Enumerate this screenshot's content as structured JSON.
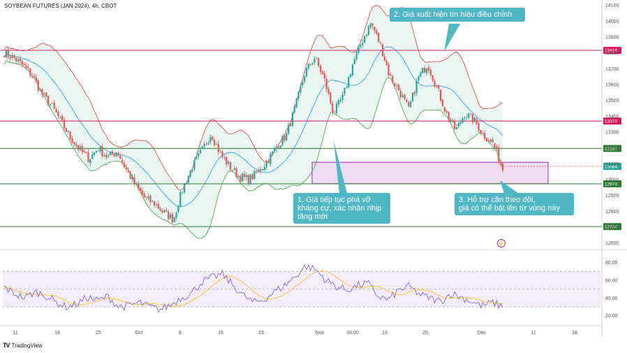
{
  "header": {
    "title": "SOYBEAN FUTURES (JAN 2024), 4h, CBOT"
  },
  "footer": {
    "brand": "TradingView",
    "logo": "TV"
  },
  "annotations": [
    {
      "id": "a1",
      "text_lines": [
        "1. Giá tiếp tục phá vỡ",
        "kháng cự, xác nhận nhịp",
        "tăng mới"
      ]
    },
    {
      "id": "a2",
      "text_lines": [
        "2. Giá xuất hiện tín hiệu điều chỉnh"
      ]
    },
    {
      "id": "a3",
      "text_lines": [
        "3. Hỗ trợ cần theo dõi,",
        "giá có thể bật lên từ vùng này"
      ]
    }
  ],
  "colors": {
    "up": "#26a69a",
    "down": "#ef5350",
    "band_upper": "#e53935",
    "band_lower": "#43a047",
    "band_mid": "#2196f3",
    "band_fill": "#e6f4ef",
    "resistance": "#d81b60",
    "support": "#2e7d32",
    "zone_fill": "#e1bee7",
    "zone_stroke": "#9c27b0",
    "rsi": "#7e57c2",
    "rsi_ma": "#fbc02d",
    "rsi_bg": "#f3ecfb",
    "callout": "#4fb6c3"
  },
  "chart_data": {
    "type": "candlestick",
    "title": "SOYBEAN FUTURES (JAN 2024), 4h, CBOT",
    "price_axis": {
      "ticks": [
        14100,
        14000,
        13900,
        13800,
        13700,
        13600,
        13500,
        13400,
        13300,
        13200,
        13100,
        13000,
        12900,
        12800,
        12700,
        12600
      ],
      "ylim": [
        12590,
        14125
      ]
    },
    "time_axis": {
      "labels": [
        "11",
        "18",
        "25",
        "Oct",
        "9",
        "16",
        "23",
        "Nov",
        "08:00",
        "13",
        "20",
        "Dec",
        "11",
        "18"
      ]
    },
    "horizontal_levels": [
      {
        "price": 13816,
        "label": "13816",
        "kind": "resistance"
      },
      {
        "price": 13370,
        "label": "13370",
        "kind": "resistance"
      },
      {
        "price": 13197,
        "label": "13197",
        "kind": "support"
      },
      {
        "price": 12974,
        "label": "12974",
        "kind": "support"
      },
      {
        "price": 12704,
        "label": "12704",
        "kind": "support"
      }
    ],
    "last_price": {
      "price": 13084,
      "label": "13084"
    },
    "support_zone": {
      "price_top": 13110,
      "price_bottom": 12975
    },
    "price_path": [
      13800,
      13770,
      13720,
      13660,
      13540,
      13470,
      13370,
      13270,
      13190,
      13130,
      13200,
      13140,
      13180,
      13060,
      12960,
      12880,
      12850,
      12790,
      12750,
      12950,
      13080,
      13180,
      13290,
      13160,
      13080,
      13020,
      13000,
      13050,
      13120,
      13210,
      13280,
      13470,
      13680,
      13770,
      13640,
      13420,
      13520,
      13720,
      13870,
      13990,
      13850,
      13650,
      13560,
      13440,
      13640,
      13730,
      13580,
      13420,
      13310,
      13420,
      13370,
      13280,
      13230,
      13070
    ],
    "rsi": {
      "ticks": [
        80,
        60,
        40,
        20
      ],
      "ylim": [
        15,
        90
      ],
      "levels": [
        70,
        50,
        30
      ],
      "path": [
        52,
        45,
        40,
        47,
        43,
        35,
        30,
        33,
        41,
        37,
        42,
        30,
        31,
        35,
        30,
        27,
        32,
        40,
        45,
        58,
        63,
        67,
        55,
        43,
        35,
        38,
        47,
        54,
        64,
        76,
        72,
        60,
        53,
        49,
        54,
        57,
        42,
        38,
        49,
        53,
        44,
        40,
        36,
        45,
        41,
        36,
        31,
        35,
        30
      ]
    }
  }
}
